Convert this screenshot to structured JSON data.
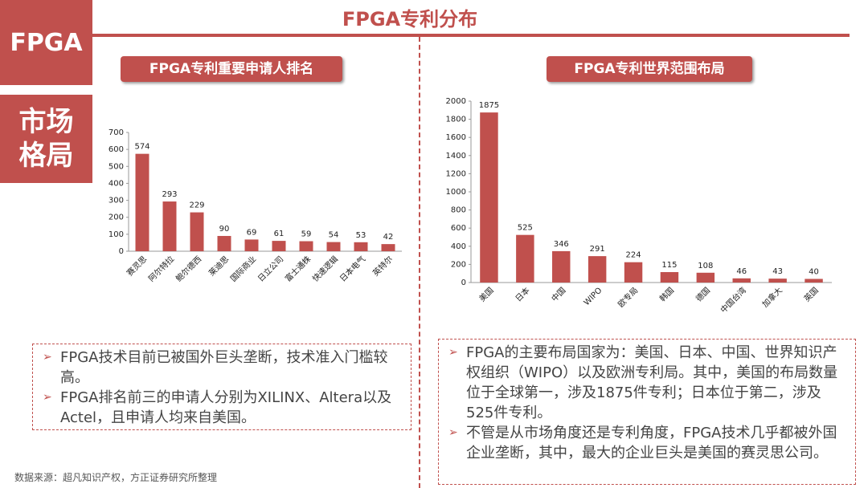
{
  "title": "FPGA专利分布",
  "side_label": "FPGA",
  "side_title_lines": [
    "市场",
    "格局"
  ],
  "chart_data": [
    {
      "type": "bar",
      "title": "FPGA专利重要申请人排名",
      "categories": [
        "赛灵思",
        "阿尔特拉",
        "鲍尔德西",
        "莱迪思",
        "国际商业",
        "日立公司",
        "富士通株",
        "快速逻辑",
        "日本电气",
        "英特尔"
      ],
      "values": [
        574,
        293,
        229,
        90,
        69,
        61,
        59,
        54,
        53,
        42
      ],
      "color": "#c0504d",
      "ylim": [
        0,
        700
      ],
      "yticks": [
        0,
        100,
        200,
        300,
        400,
        500,
        600,
        700
      ],
      "grid": false
    },
    {
      "type": "bar",
      "title": "FPGA专利世界范围布局",
      "categories": [
        "美国",
        "日本",
        "中国",
        "WIPO",
        "欧专局",
        "韩国",
        "德国",
        "中国台湾",
        "加拿大",
        "英国"
      ],
      "values": [
        1875,
        525,
        346,
        291,
        224,
        115,
        108,
        46,
        43,
        40
      ],
      "color": "#c0504d",
      "ylim": [
        0,
        2000
      ],
      "yticks": [
        0,
        200,
        400,
        600,
        800,
        1000,
        1200,
        1400,
        1600,
        1800,
        2000
      ],
      "grid": false
    }
  ],
  "notes": [
    [
      "FPGA技术目前已被国外巨头垄断，技术准入门槛较高。",
      "FPGA排名前三的申请人分别为XILINX、Altera以及Actel，且申请人均来自美国。"
    ],
    [
      "FPGA的主要布局国家为：美国、日本、中国、世界知识产权组织（WIPO）以及欧洲专利局。其中，美国的布局数量位于全球第一，涉及1875件专利；日本位于第二，涉及525件专利。",
      "不管是从市场角度还是专利角度，FPGA技术几乎都被外国企业垄断，其中，最大的企业巨头是美国的赛灵思公司。"
    ]
  ],
  "source": "数据来源：超凡知识产权，方正证券研究所整理"
}
